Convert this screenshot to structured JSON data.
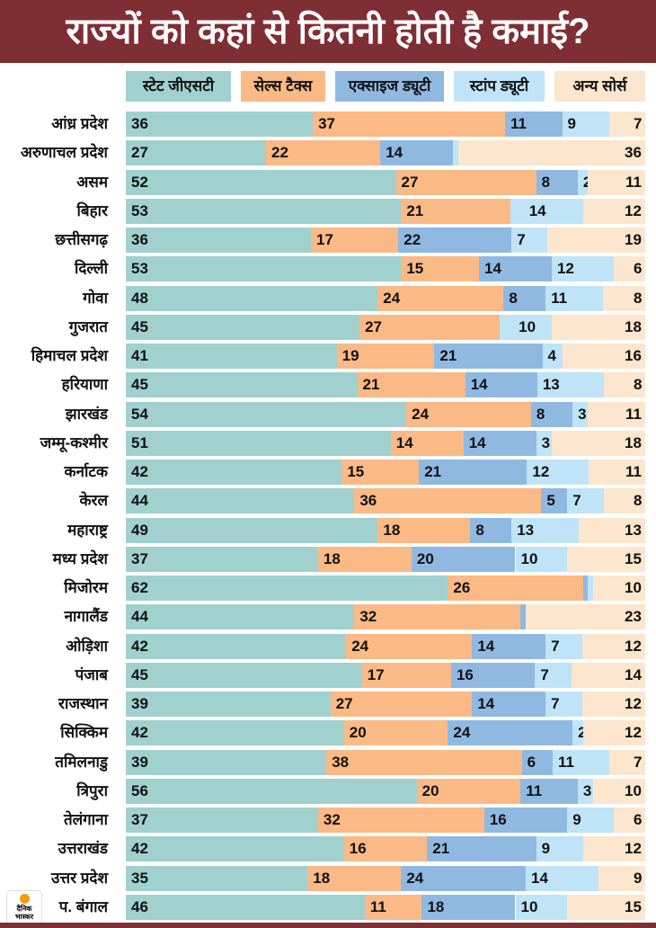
{
  "title": "राज्यों को कहां से कितनी होती है कमाई?",
  "logo_text": "दैनिक भास्कर",
  "chart_data": {
    "type": "bar",
    "stacked": true,
    "orientation": "horizontal",
    "legend_position": "top",
    "series": [
      {
        "name": "स्टेट जीएसटी",
        "color": "#a0d1cf"
      },
      {
        "name": "सेल्स टैक्स",
        "color": "#fbb986"
      },
      {
        "name": "एक्साइज ड्यूटी",
        "color": "#90b9e2"
      },
      {
        "name": "स्टांप ड्यूटी",
        "color": "#bfe4f7"
      },
      {
        "name": "अन्य सोर्स",
        "color": "#fce6cd"
      }
    ],
    "categories": [
      "आंध्र प्रदेश",
      "अरुणाचल प्रदेश",
      "असम",
      "बिहार",
      "छत्तीसगढ़",
      "दिल्ली",
      "गोवा",
      "गुजरात",
      "हिमाचल प्रदेश",
      "हरियाणा",
      "झारखंड",
      "जम्मू-कश्मीर",
      "कर्नाटक",
      "केरल",
      "महाराष्ट्र",
      "मध्य प्रदेश",
      "मिजोरम",
      "नागालैंड",
      "ओड़िशा",
      "पंजाब",
      "राजस्थान",
      "सिक्किम",
      "तमिलनाडु",
      "त्रिपुरा",
      "तेलंगाना",
      "उत्तराखंड",
      "उत्तर प्रदेश",
      "प. बंगाल"
    ],
    "values": [
      [
        36,
        37,
        11,
        9,
        7
      ],
      [
        27,
        22,
        14,
        1,
        36
      ],
      [
        52,
        27,
        8,
        2,
        11
      ],
      [
        53,
        21,
        0,
        14,
        12
      ],
      [
        36,
        17,
        22,
        7,
        19
      ],
      [
        53,
        15,
        14,
        12,
        6
      ],
      [
        48,
        24,
        8,
        11,
        8
      ],
      [
        45,
        27,
        0,
        10,
        18
      ],
      [
        41,
        19,
        21,
        4,
        16
      ],
      [
        45,
        21,
        14,
        13,
        8
      ],
      [
        54,
        24,
        8,
        3,
        11
      ],
      [
        51,
        14,
        14,
        3,
        18
      ],
      [
        42,
        15,
        21,
        12,
        11
      ],
      [
        44,
        36,
        5,
        7,
        8
      ],
      [
        49,
        18,
        8,
        13,
        13
      ],
      [
        37,
        18,
        20,
        10,
        15
      ],
      [
        62,
        26,
        1,
        1,
        10
      ],
      [
        44,
        32,
        1,
        0,
        23
      ],
      [
        42,
        24,
        14,
        7,
        12
      ],
      [
        45,
        17,
        16,
        7,
        14
      ],
      [
        39,
        27,
        14,
        7,
        12
      ],
      [
        42,
        20,
        24,
        2,
        12
      ],
      [
        39,
        38,
        6,
        11,
        7
      ],
      [
        56,
        20,
        11,
        3,
        10
      ],
      [
        37,
        32,
        16,
        9,
        6
      ],
      [
        42,
        16,
        21,
        9,
        12
      ],
      [
        35,
        18,
        24,
        14,
        9
      ],
      [
        46,
        11,
        18,
        10,
        15
      ]
    ]
  }
}
